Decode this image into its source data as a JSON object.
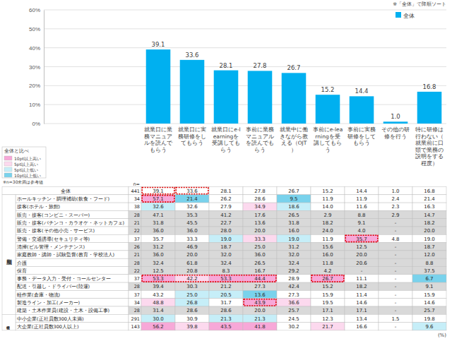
{
  "chart_data": {
    "type": "bar",
    "annotations": [
      "※「全体」で降順ソート"
    ],
    "categories": [
      "就業日に業務マニュアルを読んでもらう",
      "就業日に実務研修をしてもらう",
      "就業日にe-learningを受講してもらう",
      "事前に業務マニュアルを読んでもらう",
      "就業中に働きながら教える（OJT）",
      "事前にe-learningを受講してもらう",
      "事前に実務研修をしてもらう",
      "その他の研修を行う",
      "特に研修は行わない（就業前に口頭で業務の説明をする程度）"
    ],
    "series": [
      {
        "name": "全体",
        "color": "#00b0f0",
        "values": [
          39.1,
          33.6,
          28.1,
          27.8,
          26.7,
          15.2,
          14.4,
          1.0,
          16.8
        ],
        "value_labels": [
          "39.1",
          "33.6",
          "28.1",
          "27.8",
          "26.7",
          "15.2",
          "14.4",
          "1.0",
          "16.8"
        ]
      }
    ],
    "ylim": [
      0,
      60
    ],
    "yticks": [
      {
        "value": 0,
        "label": "0%"
      },
      {
        "value": 10,
        "label": "10%"
      },
      {
        "value": 20,
        "label": "20%"
      },
      {
        "value": 30,
        "label": "30%"
      },
      {
        "value": 40,
        "label": "40%"
      },
      {
        "value": 50,
        "label": "50%"
      },
      {
        "value": 60,
        "label": "60%"
      }
    ],
    "grid": true,
    "data_labels": true,
    "legend": "top-right"
  },
  "comparison_legend": {
    "title": "全体と比べ",
    "items": [
      {
        "label": "10pt以上高い",
        "color": "#f7a8d8"
      },
      {
        "label": "5pt以上高い",
        "color": "#fcd9ee"
      },
      {
        "label": "5pt以上低い",
        "color": "#c6eef8"
      },
      {
        "label": "10pt以上低い",
        "color": "#79d2ec"
      }
    ]
  },
  "footnote": "※n=30未満は参考値",
  "table": {
    "n_header": "n=",
    "unit": "(%)",
    "total": {
      "label": "全体",
      "n": "441",
      "cells": [
        "39.1",
        "33.6",
        "28.1",
        "27.8",
        "26.7",
        "15.2",
        "14.4",
        "1.0",
        "16.8"
      ],
      "color": "#ffffff",
      "boxes": [
        [
          0,
          0
        ],
        [
          1,
          1
        ]
      ]
    },
    "sections": [
      {
        "label": "業種別",
        "rows": [
          {
            "label": "ホールキッチン・調理補助(飲食・フード)",
            "n": "34",
            "cells": [
              "57.1",
              "21.4",
              "26.2",
              "28.6",
              "9.5",
              "11.9",
              "11.9",
              "2.4",
              "21.4"
            ],
            "colors": [
              "#f7a8d8",
              "#79d2ec",
              "#ffffff",
              "#ffffff",
              "#79d2ec",
              "#ffffff",
              "#ffffff",
              "#ffffff",
              "#ffffff"
            ],
            "boxes": [
              [
                0,
                0
              ]
            ]
          },
          {
            "label": "接客(ホテル・旅館)",
            "n": "38",
            "cells": [
              "32.6",
              "32.6",
              "27.9",
              "34.9",
              "18.6",
              "14.0",
              "11.6",
              "2.3",
              "16.3"
            ],
            "colors": [
              "#c6eef8",
              "#ffffff",
              "#ffffff",
              "#fcd9ee",
              "#c6eef8",
              "#ffffff",
              "#ffffff",
              "#ffffff",
              "#ffffff"
            ]
          },
          {
            "label": "販売・接客(コンビニ・スーパー)",
            "n": "28",
            "cells": [
              "47.1",
              "35.3",
              "41.2",
              "17.6",
              "26.5",
              "2.9",
              "8.8",
              "2.9",
              "14.7"
            ],
            "color": "#d9d9d9"
          },
          {
            "label": "販売・接客(パチンコ・カラオケ・ネットカフェ)",
            "n": "21",
            "cells": [
              "31.8",
              "45.5",
              "22.7",
              "13.6",
              "31.8",
              "18.2",
              "9.1",
              "-",
              "18.2"
            ],
            "color": "#d9d9d9"
          },
          {
            "label": "販売・接客(その他小売・サービス)",
            "n": "22",
            "cells": [
              "36.0",
              "36.0",
              "28.0",
              "20.0",
              "16.0",
              "24.0",
              "4.0",
              "-",
              "20.0"
            ],
            "color": "#d9d9d9"
          },
          {
            "label": "警備・交通誘導(セキュリティ等)",
            "n": "37",
            "cells": [
              "35.7",
              "33.3",
              "19.0",
              "33.3",
              "19.0",
              "11.9",
              "35.7",
              "4.8",
              "19.0"
            ],
            "colors": [
              "#ffffff",
              "#ffffff",
              "#c6eef8",
              "#fcd9ee",
              "#c6eef8",
              "#ffffff",
              "#f7a8d8",
              "#ffffff",
              "#ffffff"
            ],
            "boxes": [
              [
                6,
                6
              ]
            ]
          },
          {
            "label": "清掃(ビル管理・メンテナンス)",
            "n": "26",
            "cells": [
              "31.2",
              "46.9",
              "18.7",
              "25.0",
              "31.2",
              "15.6",
              "12.5",
              "-",
              "18.7"
            ],
            "color": "#d9d9d9"
          },
          {
            "label": "家庭教師・講師・試験監督(教育・学校法人)",
            "n": "21",
            "cells": [
              "36.0",
              "20.0",
              "32.0",
              "36.0",
              "32.0",
              "16.0",
              "20.0",
              "-",
              "12.0"
            ],
            "color": "#d9d9d9"
          },
          {
            "label": "介護",
            "n": "28",
            "cells": [
              "32.4",
              "61.8",
              "32.4",
              "26.5",
              "32.4",
              "11.8",
              "20.6",
              "-",
              "8.8"
            ],
            "color": "#d9d9d9"
          },
          {
            "label": "保育",
            "n": "22",
            "cells": [
              "12.5",
              "20.8",
              "8.3",
              "16.7",
              "29.2",
              "4.2",
              "-",
              "-",
              "37.5"
            ],
            "color": "#d9d9d9"
          },
          {
            "label": "事務・データ入力・受付・コールセンター",
            "n": "37",
            "cells": [
              "53.3",
              "42.2",
              "53.3",
              "44.4",
              "28.9",
              "26.7",
              "11.1",
              "-",
              "6.7"
            ],
            "colors": [
              "#f7a8d8",
              "#fcd9ee",
              "#f7a8d8",
              "#f7a8d8",
              "#ffffff",
              "#f7a8d8",
              "#ffffff",
              "#ffffff",
              "#79d2ec"
            ],
            "boxes": [
              [
                0,
                3
              ],
              [
                5,
                5
              ]
            ]
          },
          {
            "label": "配送・引越し・ドライバー(陸運)",
            "n": "28",
            "cells": [
              "39.4",
              "30.3",
              "21.2",
              "27.3",
              "42.4",
              "15.2",
              "18.2",
              "-",
              "9.1"
            ],
            "color": "#d9d9d9"
          },
          {
            "label": "軽作業(倉庫・物流)",
            "n": "37",
            "cells": [
              "43.2",
              "25.0",
              "20.5",
              "13.6",
              "27.3",
              "15.9",
              "11.4",
              "-",
              "15.9"
            ],
            "colors": [
              "#ffffff",
              "#c6eef8",
              "#c6eef8",
              "#79d2ec",
              "#ffffff",
              "#ffffff",
              "#ffffff",
              "#ffffff",
              "#ffffff"
            ]
          },
          {
            "label": "製造ライン・加工(メーカー)",
            "n": "34",
            "cells": [
              "48.8",
              "26.8",
              "31.7",
              "43.9",
              "36.6",
              "19.5",
              "14.6",
              "-",
              "14.6"
            ],
            "colors": [
              "#fcd9ee",
              "#c6eef8",
              "#ffffff",
              "#f7a8d8",
              "#fcd9ee",
              "#ffffff",
              "#ffffff",
              "#ffffff",
              "#ffffff"
            ],
            "boxes": [
              [
                3,
                3
              ]
            ]
          },
          {
            "label": "建築・土木作業員(建設・土木・設備工事)",
            "n": "28",
            "cells": [
              "31.4",
              "28.6",
              "28.6",
              "20.0",
              "25.7",
              "17.1",
              "17.1",
              "-",
              "25.7"
            ],
            "color": "#d9d9d9"
          }
        ]
      },
      {
        "label": "会社規模",
        "rows": [
          {
            "label": "中小企業(正社員数300人未満)",
            "n": "291",
            "cells": [
              "30.0",
              "30.9",
              "21.3",
              "21.3",
              "24.5",
              "12.3",
              "13.4",
              "1.5",
              "19.8"
            ],
            "colors": [
              "#c6eef8",
              "#ffffff",
              "#c6eef8",
              "#c6eef8",
              "#ffffff",
              "#ffffff",
              "#ffffff",
              "#ffffff",
              "#ffffff"
            ]
          },
          {
            "label": "大企業(正社員数300人以上)",
            "n": "143",
            "cells": [
              "56.2",
              "39.8",
              "43.5",
              "41.8",
              "30.2",
              "21.7",
              "16.6",
              "-",
              "9.6"
            ],
            "colors": [
              "#f7a8d8",
              "#fcd9ee",
              "#f7a8d8",
              "#f7a8d8",
              "#ffffff",
              "#fcd9ee",
              "#ffffff",
              "#ffffff",
              "#c6eef8"
            ]
          }
        ]
      }
    ]
  }
}
